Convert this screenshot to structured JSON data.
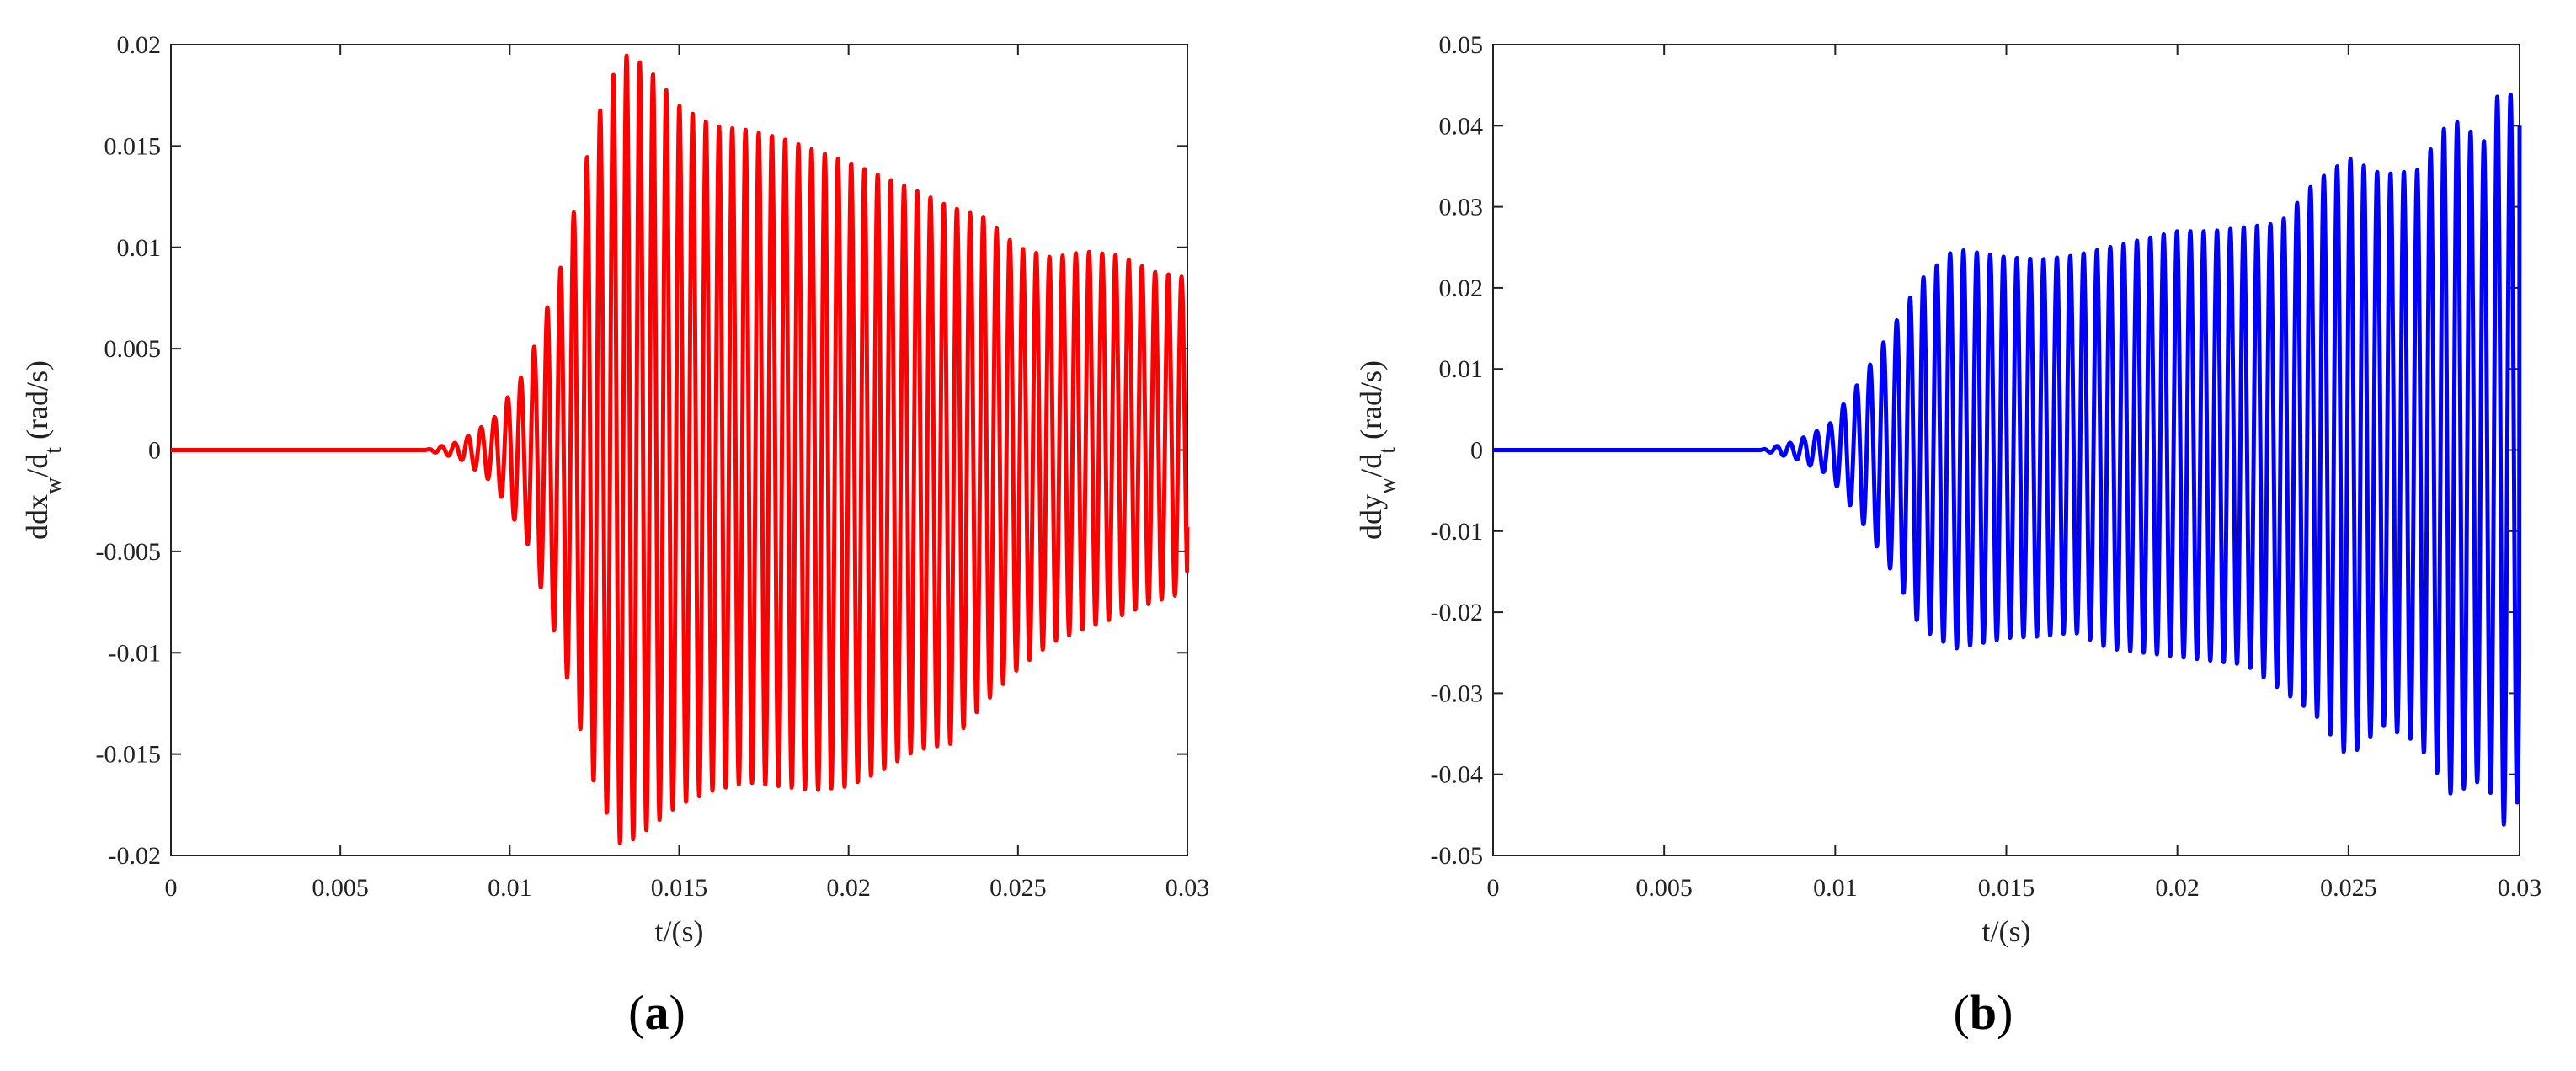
{
  "chart_data": [
    {
      "type": "line",
      "panel_label": "(a)",
      "panel_letter": "a",
      "title": "",
      "xlabel": "t/(s)",
      "ylabel": {
        "base": "ddx",
        "sub1": "w",
        "mid": "/d",
        "sub2": "t",
        "unit": " (rad/s)"
      },
      "xlim": [
        0,
        0.03
      ],
      "ylim": [
        -0.02,
        0.02
      ],
      "xticks": [
        0,
        0.005,
        0.01,
        0.015,
        0.02,
        0.025,
        0.03
      ],
      "xtick_labels": [
        "0",
        "0.005",
        "0.01",
        "0.015",
        "0.02",
        "0.025",
        "0.03"
      ],
      "yticks": [
        -0.02,
        -0.015,
        -0.01,
        -0.005,
        0,
        0.005,
        0.01,
        0.015,
        0.02
      ],
      "ytick_labels": [
        "-0.02",
        "-0.015",
        "-0.01",
        "-0.005",
        "0",
        "0.005",
        "0.01",
        "0.015",
        "0.02"
      ],
      "grid": false,
      "color": "#ff0000",
      "oscillation": {
        "start": 0.0075,
        "period": 0.00039,
        "end_value": -0.0038
      },
      "envelope": {
        "t": [
          0,
          0.0075,
          0.0085,
          0.0095,
          0.0105,
          0.0115,
          0.0125,
          0.0133,
          0.014,
          0.015,
          0.016,
          0.017,
          0.018,
          0.019,
          0.02,
          0.021,
          0.022,
          0.023,
          0.024,
          0.025,
          0.026,
          0.027,
          0.028,
          0.029,
          0.03
        ],
        "max": [
          0,
          0,
          0.0004,
          0.0015,
          0.004,
          0.009,
          0.016,
          0.0196,
          0.019,
          0.017,
          0.016,
          0.0158,
          0.0154,
          0.0148,
          0.0142,
          0.0135,
          0.0128,
          0.012,
          0.0115,
          0.01,
          0.0095,
          0.0098,
          0.0096,
          0.0088,
          0.0085
        ],
        "min": [
          0,
          0,
          -0.0004,
          -0.0016,
          -0.0045,
          -0.01,
          -0.0165,
          -0.0196,
          -0.0188,
          -0.0175,
          -0.0168,
          -0.0164,
          -0.0166,
          -0.0168,
          -0.0166,
          -0.0158,
          -0.0148,
          -0.0145,
          -0.0125,
          -0.0108,
          -0.0095,
          -0.0088,
          -0.0082,
          -0.0075,
          -0.007
        ]
      }
    },
    {
      "type": "line",
      "panel_label": "(b)",
      "panel_letter": "b",
      "title": "",
      "xlabel": "t/(s)",
      "ylabel": {
        "base": "ddy",
        "sub1": "w",
        "mid": "/d",
        "sub2": "t",
        "unit": " (rad/s)"
      },
      "xlim": [
        0,
        0.03
      ],
      "ylim": [
        -0.05,
        0.05
      ],
      "xticks": [
        0,
        0.005,
        0.01,
        0.015,
        0.02,
        0.025,
        0.03
      ],
      "xtick_labels": [
        "0",
        "0.005",
        "0.01",
        "0.015",
        "0.02",
        "0.025",
        "0.03"
      ],
      "yticks": [
        -0.05,
        -0.04,
        -0.03,
        -0.02,
        -0.01,
        0,
        0.01,
        0.02,
        0.03,
        0.04,
        0.05
      ],
      "ytick_labels": [
        "-0.05",
        "-0.04",
        "-0.03",
        "-0.02",
        "-0.01",
        "0",
        "0.01",
        "0.02",
        "0.03",
        "0.04",
        "0.05"
      ],
      "grid": false,
      "color": "#0000ff",
      "oscillation": {
        "start": 0.0078,
        "period": 0.00039,
        "end_value": 0.04
      },
      "envelope": {
        "t": [
          0,
          0.0078,
          0.0088,
          0.0098,
          0.0108,
          0.0118,
          0.0125,
          0.0135,
          0.015,
          0.016,
          0.017,
          0.018,
          0.019,
          0.02,
          0.021,
          0.022,
          0.023,
          0.024,
          0.025,
          0.026,
          0.027,
          0.028,
          0.029,
          0.0295,
          0.03
        ],
        "max": [
          0,
          0,
          0.001,
          0.003,
          0.009,
          0.016,
          0.021,
          0.0248,
          0.0238,
          0.0235,
          0.024,
          0.025,
          0.026,
          0.027,
          0.027,
          0.0275,
          0.028,
          0.033,
          0.036,
          0.034,
          0.0345,
          0.041,
          0.038,
          0.046,
          0.0415
        ],
        "min": [
          0,
          0,
          -0.001,
          -0.003,
          -0.009,
          -0.016,
          -0.022,
          -0.0245,
          -0.0232,
          -0.023,
          -0.0225,
          -0.0245,
          -0.025,
          -0.0255,
          -0.026,
          -0.0265,
          -0.0295,
          -0.0325,
          -0.038,
          -0.034,
          -0.036,
          -0.0425,
          -0.0405,
          -0.0465,
          -0.043
        ]
      }
    }
  ]
}
